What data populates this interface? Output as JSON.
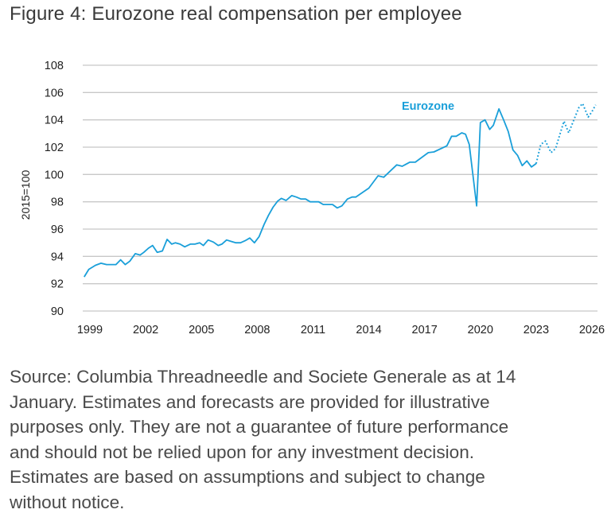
{
  "title": "Figure 4: Eurozone real compensation per employee",
  "source_lines": [
    "Source: Columbia Threadneedle and Societe Generale as at 14",
    "January. Estimates and forecasts are provided for illustrative",
    "purposes only. They are not a guarantee of future performance",
    "and should not be relied upon for any investment decision.",
    "Estimates are based on assumptions and subject to change",
    "without notice."
  ],
  "chart_data": {
    "type": "line",
    "title": "Figure 4: Eurozone real compensation per employee",
    "xlabel": "",
    "ylabel": "2015=100",
    "xlim": [
      1999,
      2026
    ],
    "ylim": [
      90,
      108
    ],
    "x_ticks": [
      "1999",
      "2002",
      "2005",
      "2008",
      "2011",
      "2014",
      "2017",
      "2020",
      "2023",
      "2026"
    ],
    "y_ticks": [
      "90",
      "92",
      "94",
      "96",
      "98",
      "100",
      "102",
      "104",
      "106",
      "108"
    ],
    "grid": "horizontal",
    "line_color": "#1a9fd9",
    "series": [
      {
        "name": "Eurozone",
        "style": "solid",
        "points": [
          [
            1998.69,
            92.5
          ],
          [
            1998.94,
            93.05
          ],
          [
            1999.3,
            93.35
          ],
          [
            1999.6,
            93.5
          ],
          [
            1999.9,
            93.4
          ],
          [
            2000.4,
            93.4
          ],
          [
            2000.65,
            93.75
          ],
          [
            2000.9,
            93.4
          ],
          [
            2001.15,
            93.65
          ],
          [
            2001.44,
            94.2
          ],
          [
            2001.7,
            94.1
          ],
          [
            2001.9,
            94.3
          ],
          [
            2002.15,
            94.6
          ],
          [
            2002.37,
            94.8
          ],
          [
            2002.62,
            94.3
          ],
          [
            2002.9,
            94.4
          ],
          [
            2003.15,
            95.25
          ],
          [
            2003.4,
            94.9
          ],
          [
            2003.6,
            95.0
          ],
          [
            2003.85,
            94.9
          ],
          [
            2004.1,
            94.7
          ],
          [
            2004.4,
            94.9
          ],
          [
            2004.65,
            94.9
          ],
          [
            2004.9,
            95.0
          ],
          [
            2005.1,
            94.8
          ],
          [
            2005.36,
            95.2
          ],
          [
            2005.64,
            95.05
          ],
          [
            2005.9,
            94.8
          ],
          [
            2006.1,
            94.9
          ],
          [
            2006.35,
            95.2
          ],
          [
            2006.6,
            95.1
          ],
          [
            2006.85,
            95.0
          ],
          [
            2007.1,
            95.0
          ],
          [
            2007.35,
            95.15
          ],
          [
            2007.6,
            95.35
          ],
          [
            2007.85,
            95.0
          ],
          [
            2008.1,
            95.45
          ],
          [
            2008.37,
            96.35
          ],
          [
            2008.6,
            97.0
          ],
          [
            2008.85,
            97.6
          ],
          [
            2009.1,
            98.05
          ],
          [
            2009.3,
            98.25
          ],
          [
            2009.55,
            98.1
          ],
          [
            2009.85,
            98.45
          ],
          [
            2010.1,
            98.35
          ],
          [
            2010.35,
            98.2
          ],
          [
            2010.6,
            98.2
          ],
          [
            2010.85,
            98.0
          ],
          [
            2011.3,
            98.0
          ],
          [
            2011.55,
            97.8
          ],
          [
            2012.05,
            97.8
          ],
          [
            2012.3,
            97.55
          ],
          [
            2012.55,
            97.7
          ],
          [
            2012.85,
            98.2
          ],
          [
            2013.1,
            98.35
          ],
          [
            2013.3,
            98.35
          ],
          [
            2014.0,
            99.0
          ],
          [
            2014.5,
            99.9
          ],
          [
            2014.8,
            99.8
          ],
          [
            2015.5,
            100.7
          ],
          [
            2015.8,
            100.6
          ],
          [
            2016.2,
            100.9
          ],
          [
            2016.5,
            100.9
          ],
          [
            2017.2,
            101.6
          ],
          [
            2017.5,
            101.65
          ],
          [
            2018.2,
            102.1
          ],
          [
            2018.45,
            102.8
          ],
          [
            2018.7,
            102.8
          ],
          [
            2019.0,
            103.05
          ],
          [
            2019.2,
            102.95
          ],
          [
            2019.4,
            102.2
          ],
          [
            2019.8,
            97.7
          ],
          [
            2020.0,
            103.8
          ],
          [
            2020.25,
            104.0
          ],
          [
            2020.5,
            103.3
          ],
          [
            2020.7,
            103.6
          ],
          [
            2021.0,
            104.8
          ],
          [
            2021.25,
            104.0
          ],
          [
            2021.5,
            103.15
          ],
          [
            2021.75,
            101.8
          ],
          [
            2022.0,
            101.4
          ],
          [
            2022.25,
            100.65
          ],
          [
            2022.5,
            101.0
          ],
          [
            2022.75,
            100.55
          ],
          [
            2023.0,
            100.8
          ]
        ]
      },
      {
        "style": "dotted",
        "points": [
          [
            2023.0,
            100.8
          ],
          [
            2023.25,
            102.2
          ],
          [
            2023.5,
            102.45
          ],
          [
            2023.8,
            101.6
          ],
          [
            2024.05,
            101.9
          ],
          [
            2024.3,
            103.05
          ],
          [
            2024.5,
            103.9
          ],
          [
            2024.75,
            103.05
          ],
          [
            2025.0,
            103.9
          ],
          [
            2025.3,
            104.9
          ],
          [
            2025.5,
            105.2
          ],
          [
            2025.8,
            104.2
          ],
          [
            2026.0,
            104.6
          ],
          [
            2026.2,
            105.1
          ]
        ]
      }
    ]
  }
}
